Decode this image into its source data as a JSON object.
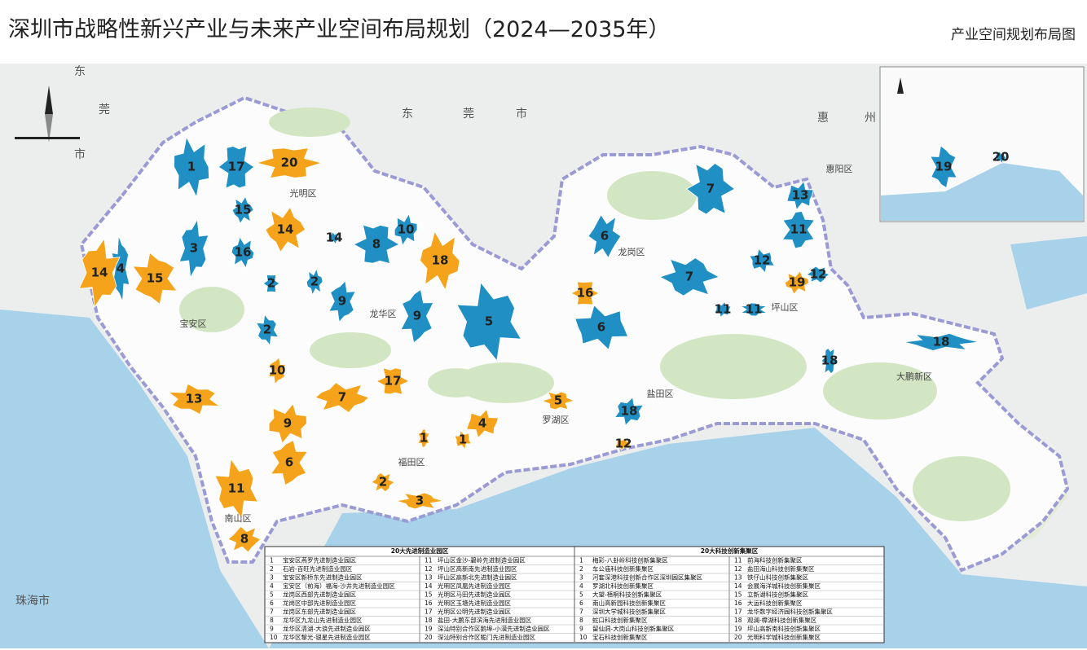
{
  "header": {
    "title": "深圳市战略性新兴产业与未来产业空间布局规划（2024—2035年）",
    "subtitle": "产业空间规划布局图"
  },
  "map_labels": [
    "东",
    "莞",
    "市",
    "东",
    "莞",
    "市",
    "惠",
    "州",
    "珠海市",
    "宝安区",
    "光明区",
    "龙华区",
    "龙岗区",
    "坪山区",
    "盐田区",
    "罗湖区",
    "福田区",
    "南山区",
    "大鹏新区",
    "惠阳区"
  ],
  "zone_colors": {
    "manufacturing": "#f5a31a",
    "innovation": "#1f8fc4"
  },
  "zones": [
    {
      "label": "1",
      "kind": "innovation"
    },
    {
      "label": "17",
      "kind": "innovation"
    },
    {
      "label": "15",
      "kind": "innovation"
    },
    {
      "label": "3",
      "kind": "innovation"
    },
    {
      "label": "4",
      "kind": "innovation"
    },
    {
      "label": "16",
      "kind": "innovation"
    },
    {
      "label": "2",
      "kind": "innovation"
    },
    {
      "label": "2",
      "kind": "innovation"
    },
    {
      "label": "9",
      "kind": "innovation"
    },
    {
      "label": "2",
      "kind": "innovation"
    },
    {
      "label": "14",
      "kind": "innovation"
    },
    {
      "label": "8",
      "kind": "innovation"
    },
    {
      "label": "10",
      "kind": "innovation"
    },
    {
      "label": "9",
      "kind": "innovation"
    },
    {
      "label": "5",
      "kind": "innovation"
    },
    {
      "label": "6",
      "kind": "innovation"
    },
    {
      "label": "7",
      "kind": "innovation"
    },
    {
      "label": "13",
      "kind": "innovation"
    },
    {
      "label": "11",
      "kind": "innovation"
    },
    {
      "label": "12",
      "kind": "innovation"
    },
    {
      "label": "12",
      "kind": "innovation"
    },
    {
      "label": "7",
      "kind": "innovation"
    },
    {
      "label": "11",
      "kind": "innovation"
    },
    {
      "label": "11",
      "kind": "innovation"
    },
    {
      "label": "6",
      "kind": "innovation"
    },
    {
      "label": "18",
      "kind": "innovation"
    },
    {
      "label": "18",
      "kind": "innovation"
    },
    {
      "label": "18",
      "kind": "innovation"
    },
    {
      "label": "19",
      "kind": "innovation"
    },
    {
      "label": "20",
      "kind": "innovation"
    },
    {
      "label": "20",
      "kind": "manufacturing"
    },
    {
      "label": "14",
      "kind": "manufacturing"
    },
    {
      "label": "14",
      "kind": "manufacturing"
    },
    {
      "label": "15",
      "kind": "manufacturing"
    },
    {
      "label": "18",
      "kind": "manufacturing"
    },
    {
      "label": "16",
      "kind": "manufacturing"
    },
    {
      "label": "19",
      "kind": "manufacturing"
    },
    {
      "label": "10",
      "kind": "manufacturing"
    },
    {
      "label": "13",
      "kind": "manufacturing"
    },
    {
      "label": "7",
      "kind": "manufacturing"
    },
    {
      "label": "17",
      "kind": "manufacturing"
    },
    {
      "label": "9",
      "kind": "manufacturing"
    },
    {
      "label": "6",
      "kind": "manufacturing"
    },
    {
      "label": "11",
      "kind": "manufacturing"
    },
    {
      "label": "8",
      "kind": "manufacturing"
    },
    {
      "label": "5",
      "kind": "manufacturing"
    },
    {
      "label": "4",
      "kind": "manufacturing"
    },
    {
      "label": "1",
      "kind": "manufacturing"
    },
    {
      "label": "1",
      "kind": "manufacturing"
    },
    {
      "label": "2",
      "kind": "manufacturing"
    },
    {
      "label": "3",
      "kind": "manufacturing"
    },
    {
      "label": "12",
      "kind": "manufacturing"
    }
  ],
  "legend": {
    "manufacturing": {
      "title": "20大先进制造业园区",
      "items": [
        {
          "no": "1",
          "name": "宝安区燕罗先进制造业园区"
        },
        {
          "no": "2",
          "name": "石岩-百旺先进制造业园区"
        },
        {
          "no": "3",
          "name": "宝安区新桥东先进制造业园区"
        },
        {
          "no": "4",
          "name": "宝安区（前海）福海-沙井先进制造业园区"
        },
        {
          "no": "5",
          "name": "龙岗区西部先进制造业园区"
        },
        {
          "no": "6",
          "name": "龙岗区中部先进制造业园区"
        },
        {
          "no": "7",
          "name": "龙岗区东部先进制造业园区"
        },
        {
          "no": "8",
          "name": "龙华区九龙山先进制造业园区"
        },
        {
          "no": "9",
          "name": "龙华区清湖-大浪先进制造业园区"
        },
        {
          "no": "10",
          "name": "龙华区黎光-银星先进制造业园区"
        },
        {
          "no": "11",
          "name": "坪山区金沙-碧岭先进制造业园区"
        },
        {
          "no": "12",
          "name": "坪山区高新南先进制造业园区"
        },
        {
          "no": "13",
          "name": "坪山区高新北先进制造业园区"
        },
        {
          "no": "14",
          "name": "光明区凤凰先进制造业园区"
        },
        {
          "no": "15",
          "name": "光明区马田先进制造业园区"
        },
        {
          "no": "16",
          "name": "光明区玉塘先进制造业园区"
        },
        {
          "no": "17",
          "name": "光明区公明先进制造业园区"
        },
        {
          "no": "18",
          "name": "盐田-大鹏东部滨海先进制造业园区"
        },
        {
          "no": "19",
          "name": "深汕特别合作区鹅埠-小漠先进制造业园区"
        },
        {
          "no": "20",
          "name": "深汕特别合作区鲘门先进制造业园区"
        }
      ]
    },
    "innovation": {
      "title": "20大科技创新集聚区",
      "items": [
        {
          "no": "1",
          "name": "梅彩-八卦岭科技创新集聚区"
        },
        {
          "no": "2",
          "name": "车公庙科技创新集聚区"
        },
        {
          "no": "3",
          "name": "河套深港科技创新合作区深圳园区集聚区"
        },
        {
          "no": "4",
          "name": "罗湖北科技创新集聚区"
        },
        {
          "no": "5",
          "name": "大望-梧桐科技创新集聚区"
        },
        {
          "no": "6",
          "name": "南山高新园科技创新集聚区"
        },
        {
          "no": "7",
          "name": "深圳大学城科技创新集聚区"
        },
        {
          "no": "8",
          "name": "蛇口科技创新集聚区"
        },
        {
          "no": "9",
          "name": "留仙洞-大岗山科技创新集聚区"
        },
        {
          "no": "10",
          "name": "宝石科技创新集聚区"
        },
        {
          "no": "11",
          "name": "前海科技创新集聚区"
        },
        {
          "no": "12",
          "name": "盐田海山科技创新集聚区"
        },
        {
          "no": "13",
          "name": "铁仔山科技创新集聚区"
        },
        {
          "no": "14",
          "name": "会展海洋城科技创新集聚区"
        },
        {
          "no": "15",
          "name": "立新湖科技创新集聚区"
        },
        {
          "no": "16",
          "name": "大运科技创新集聚区"
        },
        {
          "no": "17",
          "name": "龙华数字经济园科技创新集聚区"
        },
        {
          "no": "18",
          "name": "观澜-樟湖科技创新集聚区"
        },
        {
          "no": "19",
          "name": "坪山高新南科技创新集聚区"
        },
        {
          "no": "20",
          "name": "光明科学城科技创新集聚区"
        }
      ]
    }
  }
}
